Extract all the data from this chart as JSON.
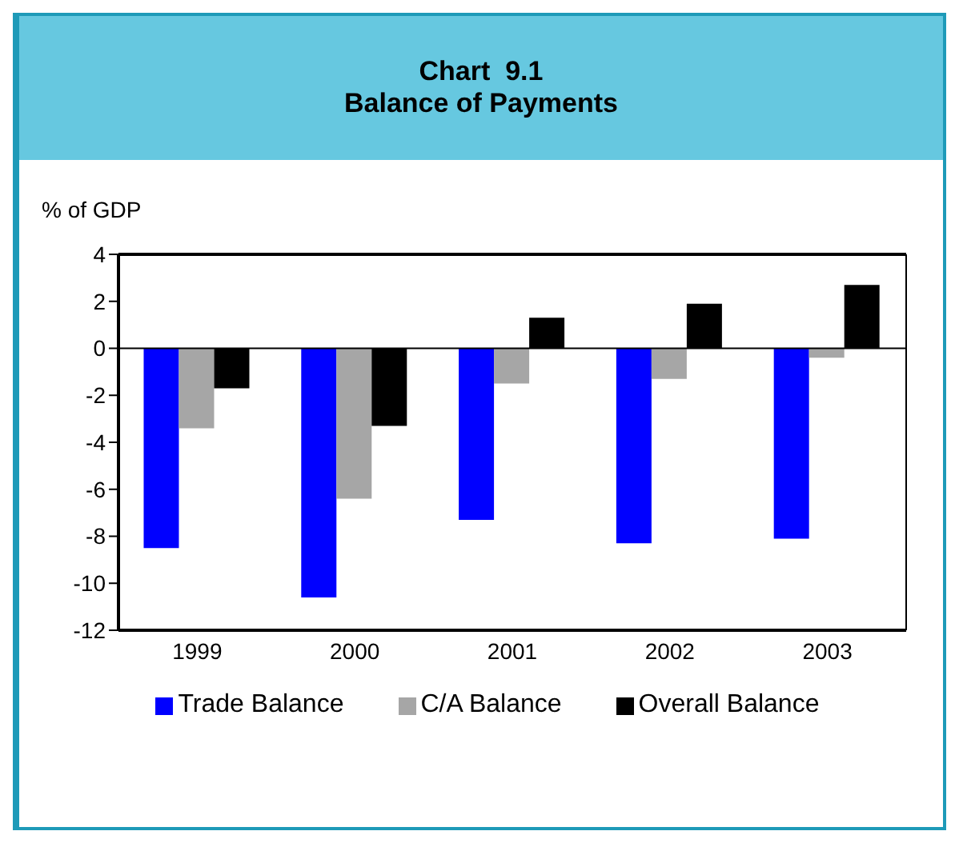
{
  "chart_data": {
    "type": "bar",
    "title": "Chart  9.1",
    "subtitle": "Balance of Payments",
    "ylabel": "% of GDP",
    "categories": [
      "1999",
      "2000",
      "2001",
      "2002",
      "2003"
    ],
    "series": [
      {
        "name": "Trade Balance",
        "color": "#0000ff",
        "values": [
          -8.5,
          -10.6,
          -7.3,
          -8.3,
          -8.1
        ]
      },
      {
        "name": "C/A Balance",
        "color": "#a6a6a6",
        "values": [
          -3.4,
          -6.4,
          -1.5,
          -1.3,
          -0.4
        ]
      },
      {
        "name": "Overall Balance",
        "color": "#000000",
        "values": [
          -1.7,
          -3.3,
          1.3,
          1.9,
          2.7
        ]
      }
    ],
    "ylim": [
      -12,
      4
    ],
    "yticks": [
      -12,
      -10,
      -8,
      -6,
      -4,
      -2,
      0,
      2,
      4
    ],
    "ref_lines": [
      {
        "axis": "y",
        "value": 0,
        "color": "#000000"
      }
    ],
    "legend": "bottom"
  }
}
